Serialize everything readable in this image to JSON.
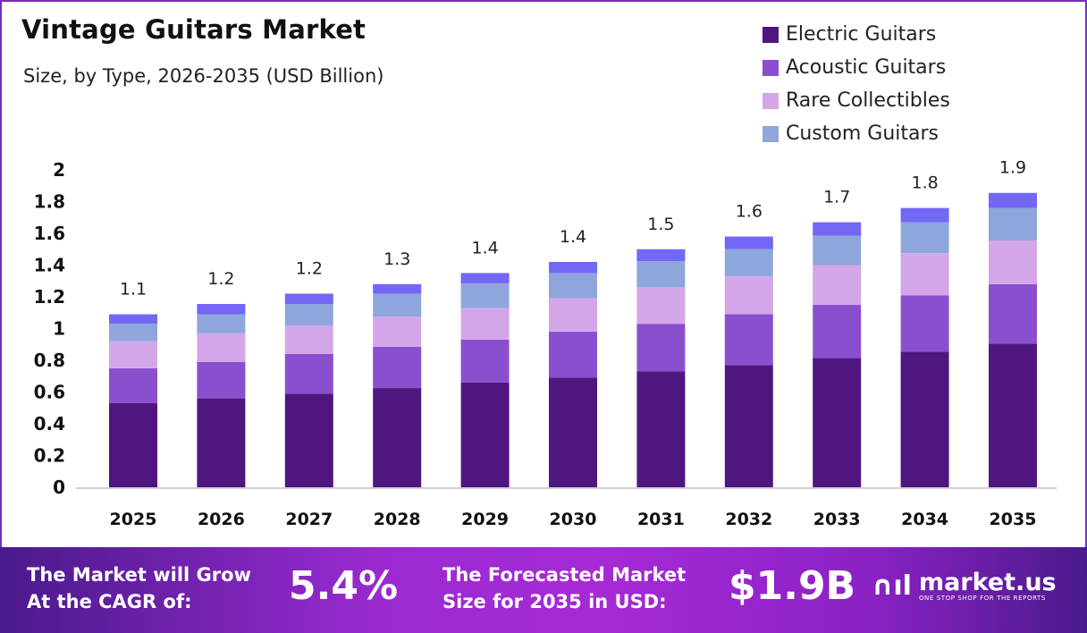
{
  "chart_data": {
    "type": "bar",
    "stacked": true,
    "title": "Vintage Guitars Market",
    "subtitle": "Size, by Type, 2026-2035 (USD Billion)",
    "categories": [
      "2025",
      "2026",
      "2027",
      "2028",
      "2029",
      "2030",
      "2031",
      "2032",
      "2033",
      "2034",
      "2035"
    ],
    "series": [
      {
        "name": "Electric Guitars",
        "color": "#4f1680",
        "values": [
          0.53,
          0.56,
          0.59,
          0.625,
          0.66,
          0.69,
          0.73,
          0.77,
          0.815,
          0.855,
          0.905
        ]
      },
      {
        "name": "Acoustic Guitars",
        "color": "#8a4fcf",
        "values": [
          0.22,
          0.23,
          0.25,
          0.26,
          0.27,
          0.29,
          0.3,
          0.32,
          0.335,
          0.355,
          0.375
        ]
      },
      {
        "name": "Rare Collectibles",
        "color": "#d3a6ea",
        "values": [
          0.17,
          0.18,
          0.18,
          0.19,
          0.2,
          0.21,
          0.23,
          0.24,
          0.25,
          0.265,
          0.275
        ]
      },
      {
        "name": "Custom Guitars",
        "color": "#8fa6dc",
        "values": [
          0.11,
          0.12,
          0.135,
          0.145,
          0.155,
          0.16,
          0.165,
          0.17,
          0.185,
          0.195,
          0.205
        ]
      },
      {
        "color": "#7367f6",
        "values": [
          0.06,
          0.065,
          0.065,
          0.06,
          0.065,
          0.07,
          0.075,
          0.08,
          0.085,
          0.09,
          0.095
        ]
      }
    ],
    "totals_labels": [
      "1.1",
      "1.2",
      "1.2",
      "1.3",
      "1.4",
      "1.4",
      "1.5",
      "1.6",
      "1.7",
      "1.8",
      "1.9"
    ],
    "yticks": [
      "0",
      "0.2",
      "0.4",
      "0.6",
      "0.8",
      "1",
      "1.2",
      "1.4",
      "1.6",
      "1.8",
      "2"
    ],
    "ylim": [
      0,
      2
    ],
    "grid": false,
    "legend": "top-right",
    "xlabel": "",
    "ylabel": ""
  },
  "footer": {
    "cagr_text_1": "The Market will Grow",
    "cagr_text_2": "At the CAGR of:",
    "cagr_value": "5.4%",
    "forecast_text_1": "The Forecasted Market",
    "forecast_text_2": "Size for 2035 in USD:",
    "forecast_value": "$1.9B",
    "logo_name": "market.us",
    "logo_tagline": "ONE STOP SHOP FOR THE REPORTS"
  }
}
